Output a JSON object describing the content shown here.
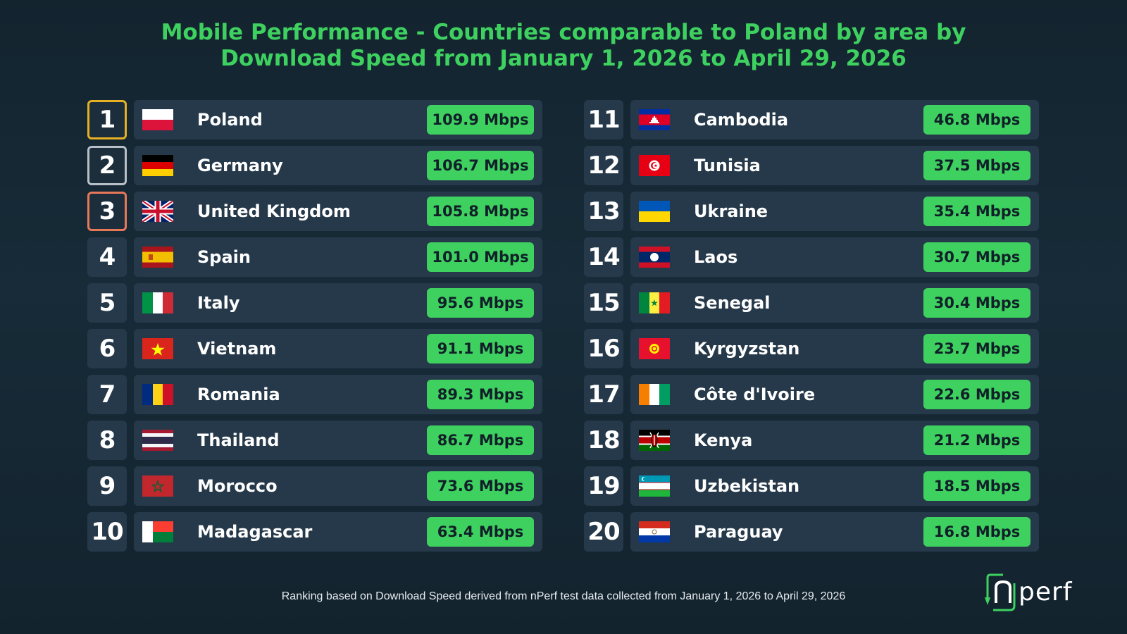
{
  "title_line1": "Mobile Performance - Countries comparable to Poland by area by",
  "title_line2": "Download Speed from January 1, 2026 to April 29, 2026",
  "footer": "Ranking based on Download Speed derived from nPerf test data collected from January 1, 2026 to April 29, 2026",
  "logo_text": "nperf",
  "colors": {
    "accent": "#3ed160",
    "background": "#152835",
    "row_background": "#26394a",
    "gold": "#e5b024",
    "silver": "#b8c0c7",
    "bronze": "#e8785a"
  },
  "chart_data": {
    "type": "table",
    "unit": "Mbps",
    "rows": [
      {
        "rank": "1",
        "country": "Poland",
        "speed": "109.9 Mbps",
        "value": 109.9
      },
      {
        "rank": "2",
        "country": "Germany",
        "speed": "106.7 Mbps",
        "value": 106.7
      },
      {
        "rank": "3",
        "country": "United Kingdom",
        "speed": "105.8 Mbps",
        "value": 105.8
      },
      {
        "rank": "4",
        "country": "Spain",
        "speed": "101.0 Mbps",
        "value": 101.0
      },
      {
        "rank": "5",
        "country": "Italy",
        "speed": "95.6 Mbps",
        "value": 95.6
      },
      {
        "rank": "6",
        "country": "Vietnam",
        "speed": "91.1 Mbps",
        "value": 91.1
      },
      {
        "rank": "7",
        "country": "Romania",
        "speed": "89.3 Mbps",
        "value": 89.3
      },
      {
        "rank": "8",
        "country": "Thailand",
        "speed": "86.7 Mbps",
        "value": 86.7
      },
      {
        "rank": "9",
        "country": "Morocco",
        "speed": "73.6 Mbps",
        "value": 73.6
      },
      {
        "rank": "10",
        "country": "Madagascar",
        "speed": "63.4 Mbps",
        "value": 63.4
      },
      {
        "rank": "11",
        "country": "Cambodia",
        "speed": "46.8 Mbps",
        "value": 46.8
      },
      {
        "rank": "12",
        "country": "Tunisia",
        "speed": "37.5 Mbps",
        "value": 37.5
      },
      {
        "rank": "13",
        "country": "Ukraine",
        "speed": "35.4 Mbps",
        "value": 35.4
      },
      {
        "rank": "14",
        "country": "Laos",
        "speed": "30.7 Mbps",
        "value": 30.7
      },
      {
        "rank": "15",
        "country": "Senegal",
        "speed": "30.4 Mbps",
        "value": 30.4
      },
      {
        "rank": "16",
        "country": "Kyrgyzstan",
        "speed": "23.7 Mbps",
        "value": 23.7
      },
      {
        "rank": "17",
        "country": "Côte d'Ivoire",
        "speed": "22.6 Mbps",
        "value": 22.6
      },
      {
        "rank": "18",
        "country": "Kenya",
        "speed": "21.2 Mbps",
        "value": 21.2
      },
      {
        "rank": "19",
        "country": "Uzbekistan",
        "speed": "18.5 Mbps",
        "value": 18.5
      },
      {
        "rank": "20",
        "country": "Paraguay",
        "speed": "16.8 Mbps",
        "value": 16.8
      }
    ]
  }
}
